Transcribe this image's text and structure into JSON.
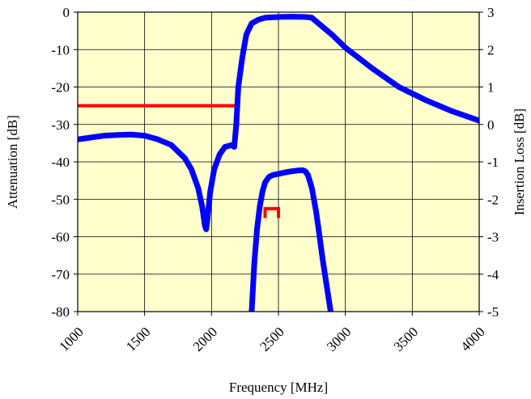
{
  "chart_data": {
    "type": "line",
    "title": "",
    "xlabel": "Frequency [MHz]",
    "ylabel_left": "Attenuation  [dB]",
    "ylabel_right": "Insertion Loss  [dB]",
    "xlim": [
      1000,
      4000
    ],
    "ylim_left": [
      -80,
      0
    ],
    "ylim_right": [
      -5,
      3
    ],
    "x_ticks": [
      1000,
      1500,
      2000,
      2500,
      3000,
      3500,
      4000
    ],
    "y_left_ticks": [
      0,
      -10,
      -20,
      -30,
      -40,
      -50,
      -60,
      -70,
      -80
    ],
    "y_right_ticks": [
      3,
      2,
      1,
      0,
      -1,
      -2,
      -3,
      -4,
      -5
    ],
    "grid": true,
    "background": "#ffffcc",
    "series": [
      {
        "axis": "left",
        "color": "#0000ff",
        "x": [
          1000,
          1100,
          1200,
          1300,
          1400,
          1500,
          1600,
          1700,
          1800,
          1850,
          1900,
          1930,
          1950,
          1960,
          1970,
          1990,
          2020,
          2060,
          2100,
          2150,
          2170,
          2185,
          2200,
          2230,
          2260,
          2300,
          2350,
          2400,
          2500,
          2600,
          2700,
          2750,
          2800,
          2900,
          3000,
          3200,
          3400,
          3600,
          3800,
          4000
        ],
        "y": [
          -34,
          -33.5,
          -33,
          -32.8,
          -32.7,
          -33,
          -34,
          -35.5,
          -39,
          -42,
          -47,
          -52,
          -57,
          -58,
          -55,
          -48,
          -42,
          -38,
          -36,
          -35.5,
          -36,
          -30,
          -20,
          -12,
          -6,
          -3,
          -2,
          -1.5,
          -1.3,
          -1.2,
          -1.3,
          -1.5,
          -3,
          -6,
          -9.5,
          -15,
          -20,
          -23.5,
          -26.5,
          -29
        ]
      },
      {
        "axis": "right",
        "color": "#0000ff",
        "x": [
          2300,
          2320,
          2340,
          2360,
          2380,
          2400,
          2430,
          2460,
          2500,
          2550,
          2600,
          2650,
          2680,
          2700,
          2720,
          2750,
          2780,
          2800,
          2830,
          2860,
          2890
        ],
        "y": [
          -5,
          -3.7,
          -2.8,
          -2.2,
          -1.8,
          -1.55,
          -1.4,
          -1.35,
          -1.32,
          -1.28,
          -1.25,
          -1.23,
          -1.22,
          -1.25,
          -1.35,
          -1.7,
          -2.3,
          -2.8,
          -3.6,
          -4.3,
          -5
        ]
      }
    ],
    "specs": [
      {
        "axis": "left",
        "color": "#ff0000",
        "x": [
          1000,
          2200,
          2200
        ],
        "y": [
          -25,
          -25,
          -23
        ]
      },
      {
        "axis": "left",
        "color": "#ff0000",
        "x": [
          2400,
          2400,
          2500,
          2500
        ],
        "y": [
          -55,
          -52.5,
          -52.5,
          -55
        ]
      }
    ]
  }
}
